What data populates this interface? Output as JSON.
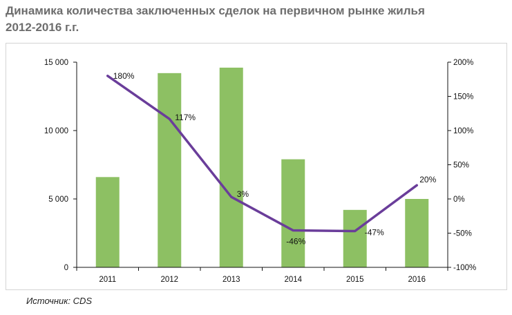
{
  "title_line1": "Динамика количества заключенных сделок на первичном рынке жилья",
  "title_line2": "2012-2016 г.г.",
  "source": "Источник: CDS",
  "colors": {
    "bar": "#8dc063",
    "line": "#6a3d9a",
    "axis": "#111111"
  },
  "chart_data": {
    "type": "bar",
    "categories": [
      "2011",
      "2012",
      "2013",
      "2014",
      "2015",
      "2016"
    ],
    "series": [
      {
        "values": [
          6600,
          14200,
          14600,
          7900,
          4200,
          5000
        ]
      },
      {
        "values": [
          180,
          117,
          3,
          -46,
          -47,
          20
        ]
      }
    ],
    "data_labels": [
      "180%",
      "117%",
      "3%",
      "-46%",
      "-47%",
      "20%"
    ],
    "y_left": {
      "lim": [
        0,
        15000
      ],
      "ticks": [
        0,
        5000,
        10000,
        15000
      ],
      "tick_labels": [
        "0",
        "5 000",
        "10 000",
        "15 000"
      ]
    },
    "y_right": {
      "lim": [
        -100,
        200
      ],
      "ticks": [
        -100,
        -50,
        0,
        50,
        100,
        150,
        200
      ],
      "tick_labels": [
        "-100%",
        "-50%",
        "0%",
        "50%",
        "100%",
        "150%",
        "200%"
      ]
    },
    "grid": false,
    "legend": "none"
  }
}
